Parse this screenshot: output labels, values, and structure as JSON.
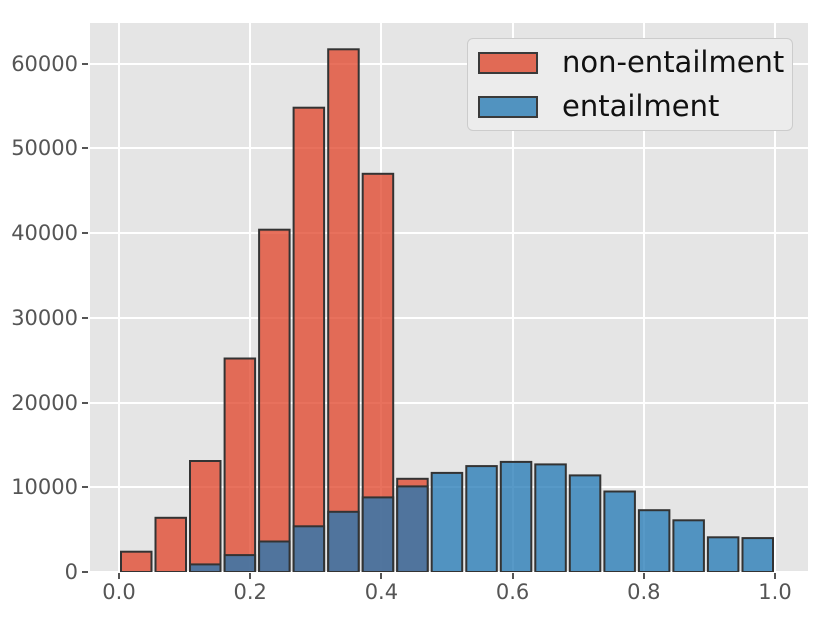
{
  "chart_data": {
    "type": "bar",
    "subtype": "overlaid-histogram",
    "title": "",
    "xlabel": "",
    "ylabel": "",
    "bin_start": 0.0,
    "bin_end": 1.0,
    "n_bins": 19,
    "series": [
      {
        "name": "non-entailment",
        "fill": "#E2492F",
        "fill_opacity": 0.78,
        "legend_color": "#E16A55",
        "values": [
          2400,
          6400,
          13100,
          25200,
          40400,
          54800,
          61700,
          47000,
          11000,
          0,
          0,
          0,
          0,
          0,
          0,
          0,
          0,
          0,
          0
        ]
      },
      {
        "name": "entailment",
        "fill": "#1F77B4",
        "fill_opacity": 0.75,
        "legend_color": "#5193C0",
        "values": [
          0,
          0,
          900,
          2000,
          3600,
          5400,
          7100,
          8800,
          10100,
          11700,
          12500,
          13000,
          12700,
          11400,
          9500,
          7300,
          6100,
          4100,
          4000
        ]
      }
    ],
    "xticks": [
      0.0,
      0.2,
      0.4,
      0.6,
      0.8,
      1.0
    ],
    "xtick_labels": [
      "0.0",
      "0.2",
      "0.4",
      "0.6",
      "0.8",
      "1.0"
    ],
    "yticks": [
      0,
      10000,
      20000,
      30000,
      40000,
      50000,
      60000
    ],
    "ytick_labels": [
      "0",
      "10000",
      "20000",
      "30000",
      "40000",
      "50000",
      "60000"
    ],
    "xlim": [
      -0.0442,
      1.0503
    ],
    "ylim": [
      0,
      64800
    ],
    "grid": true,
    "legend_position": "upper right",
    "style": {
      "plot_background": "#E5E5E5",
      "figure_background": "#FFFFFF",
      "grid_color": "#FFFFFF",
      "bar_edge_color": "#333333",
      "bar_edge_width": 2,
      "tick_color": "#555555",
      "tick_label_color": "#555555"
    }
  },
  "legend": {
    "items": [
      {
        "label": "non-entailment"
      },
      {
        "label": "entailment"
      }
    ]
  }
}
